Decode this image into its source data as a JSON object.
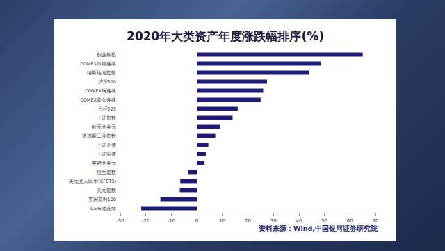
{
  "chart_data": {
    "type": "bar",
    "orientation": "horizontal",
    "title": "2020年大类资产年度涨跌幅排序(%)",
    "source": "资料来源：Wind,中国银河证券研究院",
    "categories": [
      "创业板指",
      "COMEX白银连续",
      "纳斯达克指数",
      "沪深300",
      "COMEX铜连续",
      "COMEX黄金连续",
      "日经225",
      "上证指数",
      "欧元兑美元",
      "道琼斯工业指数",
      "上证企债",
      "上证国债",
      "英镑兑美元",
      "恒生指数",
      "美元兑人民币(CFETS)",
      "美元指数",
      "英国富时100",
      "ICE布油连续"
    ],
    "values": [
      65,
      48.5,
      44,
      27.5,
      26,
      25,
      16,
      14,
      9,
      7.2,
      4.5,
      3.5,
      3,
      -3.4,
      -6.5,
      -6.7,
      -14.3,
      -21.8
    ],
    "color": "#1f1c78",
    "xlim": [
      -30,
      70
    ],
    "xticks": [
      -30,
      -20,
      -10,
      0,
      10,
      20,
      30,
      40,
      50,
      60,
      70
    ],
    "grid": false,
    "data_labels": false
  }
}
